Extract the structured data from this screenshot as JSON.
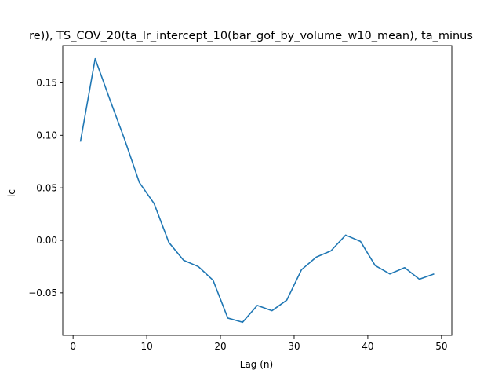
{
  "chart_data": {
    "type": "line",
    "title": "re)), TS_COV_20(ta_lr_intercept_10(bar_gof_by_volume_w10_mean), ta_minus",
    "xlabel": "Lag (n)",
    "ylabel": "ic",
    "xlim": [
      -1.4,
      51.4
    ],
    "ylim": [
      -0.0905,
      0.1855
    ],
    "x_ticks": [
      0,
      10,
      20,
      30,
      40,
      50
    ],
    "x_tick_labels": [
      "0",
      "10",
      "20",
      "30",
      "40",
      "50"
    ],
    "y_ticks": [
      -0.05,
      0.0,
      0.05,
      0.1,
      0.15
    ],
    "y_tick_labels": [
      "−0.05",
      "0.00",
      "0.05",
      "0.10",
      "0.15"
    ],
    "grid": false,
    "legend": "none",
    "series": [
      {
        "color": "#1f77b4",
        "x": [
          1,
          3,
          5,
          7,
          9,
          11,
          13,
          15,
          17,
          19,
          21,
          23,
          25,
          27,
          29,
          31,
          33,
          35,
          37,
          39,
          41,
          43,
          45,
          47,
          49
        ],
        "y": [
          0.094,
          0.173,
          0.134,
          0.096,
          0.055,
          0.035,
          -0.002,
          -0.019,
          -0.025,
          -0.038,
          -0.074,
          -0.078,
          -0.062,
          -0.067,
          -0.057,
          -0.028,
          -0.016,
          -0.01,
          0.005,
          -0.001,
          -0.024,
          -0.032,
          -0.026,
          -0.037,
          -0.032
        ]
      }
    ]
  }
}
